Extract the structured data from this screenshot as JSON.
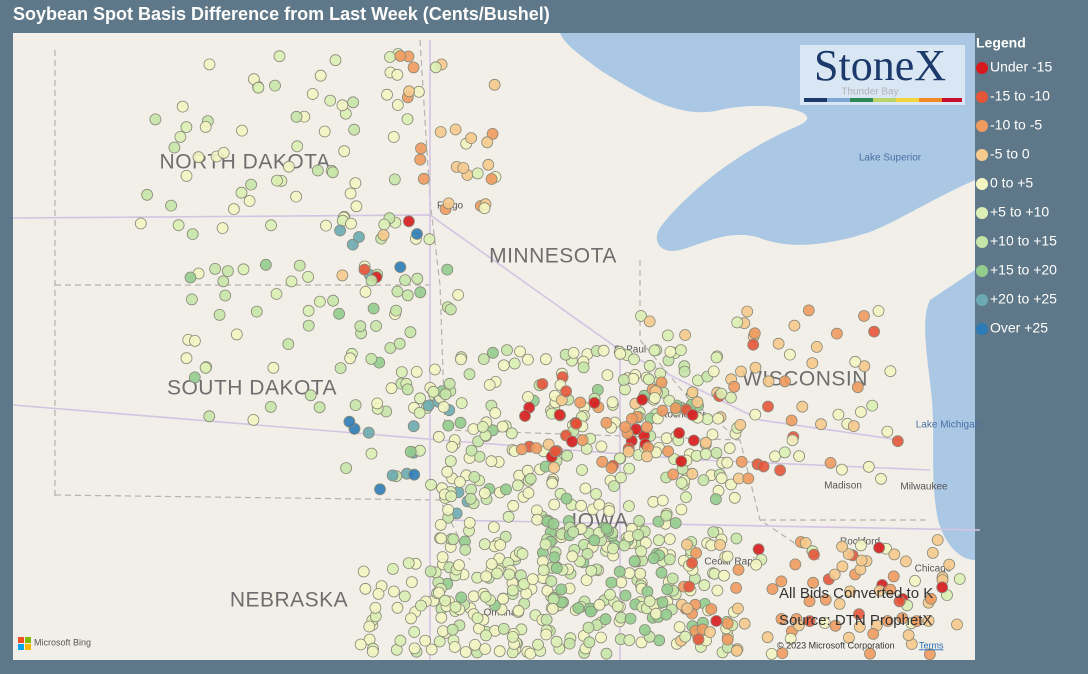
{
  "header": {
    "title": "Soybean Spot Basis Difference from Last Week (Cents/Bushel)"
  },
  "legend": {
    "title": "Legend",
    "items": [
      {
        "label": "Under -15",
        "color": "#d7191c"
      },
      {
        "label": "-15 to -10",
        "color": "#e4553a"
      },
      {
        "label": "-10 to -5",
        "color": "#ef9a5e"
      },
      {
        "label": "-5 to 0",
        "color": "#f6c98c"
      },
      {
        "label": "0 to +5",
        "color": "#f3f5c2"
      },
      {
        "label": "+5 to +10",
        "color": "#dcefb4"
      },
      {
        "label": "+10 to +15",
        "color": "#c6e5a8"
      },
      {
        "label": "+15 to +20",
        "color": "#94cc8e"
      },
      {
        "label": "+20 to +25",
        "color": "#6aaab0"
      },
      {
        "label": "Over +25",
        "color": "#2c7bb6"
      }
    ]
  },
  "logo": {
    "name": "StoneX"
  },
  "map": {
    "states": [
      "NORTH DAKOTA",
      "MINNESOTA",
      "SOUTH DAKOTA",
      "WISCONSIN",
      "NEBRASKA",
      "IOWA"
    ],
    "places": [
      "Thunder Bay",
      "Lake Superior",
      "Fargo",
      "St Paul",
      "Rochester",
      "Lake Michigan",
      "Madison",
      "Milwaukee",
      "Rockford",
      "Cedar Rapids",
      "Chicago",
      "Omaha"
    ]
  },
  "notes": [
    "All Bids Converted to K",
    "Source: DTN ProphetX"
  ],
  "attribution": {
    "provider": "Microsoft Bing",
    "copyright": "© 2023 Microsoft Corporation",
    "terms": "Terms"
  }
}
